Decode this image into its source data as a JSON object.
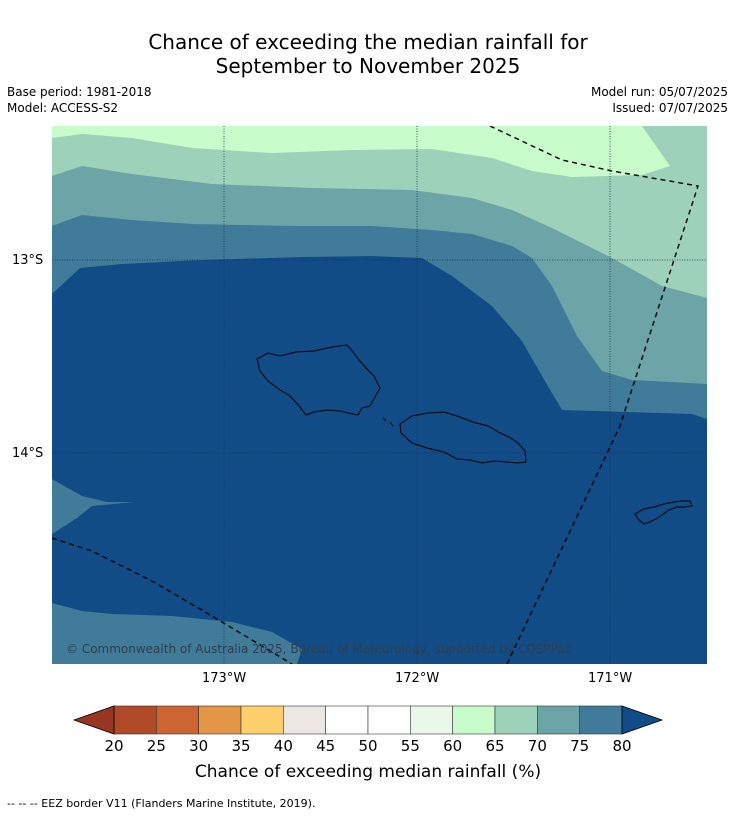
{
  "title_line1": "Chance of exceeding the median rainfall for",
  "title_line2": "September to November 2025",
  "meta_left": [
    "Base period: 1981-2018",
    "Model: ACCESS-S2"
  ],
  "meta_right": [
    "Model run: 05/07/2025",
    "Issued: 07/07/2025"
  ],
  "map": {
    "lat_labels": [
      "13°S",
      "14°S"
    ],
    "lon_labels": [
      "173°W",
      "172°W",
      "171°W"
    ],
    "copyright": "© Commonwealth of Australia 2025, Bureau of Meteorology, supported by COSPPac",
    "zone_colors": {
      "p80": "#124c87",
      "p75_80": "#417b9a",
      "p70_75": "#6ca4a8",
      "p65_70": "#9dd1b9",
      "p60_65": "#c9fccb"
    }
  },
  "colorbar": {
    "ticks": [
      "20",
      "25",
      "30",
      "35",
      "40",
      "45",
      "50",
      "55",
      "60",
      "65",
      "70",
      "75",
      "80"
    ],
    "colors": [
      "#b04a27",
      "#cd6532",
      "#e29646",
      "#fdcf6d",
      "#ece7e3",
      "#ffffff",
      "#ffffff",
      "#eaf7ea",
      "#c9fccb",
      "#9dd1b9",
      "#6ca4a8",
      "#417b9a"
    ],
    "under_color": "#973621",
    "over_color": "#124c87",
    "label": "Chance of exceeding median rainfall (%)"
  },
  "footnote": "--  --  -- EEZ border V11 (Flanders Marine Institute, 2019)."
}
